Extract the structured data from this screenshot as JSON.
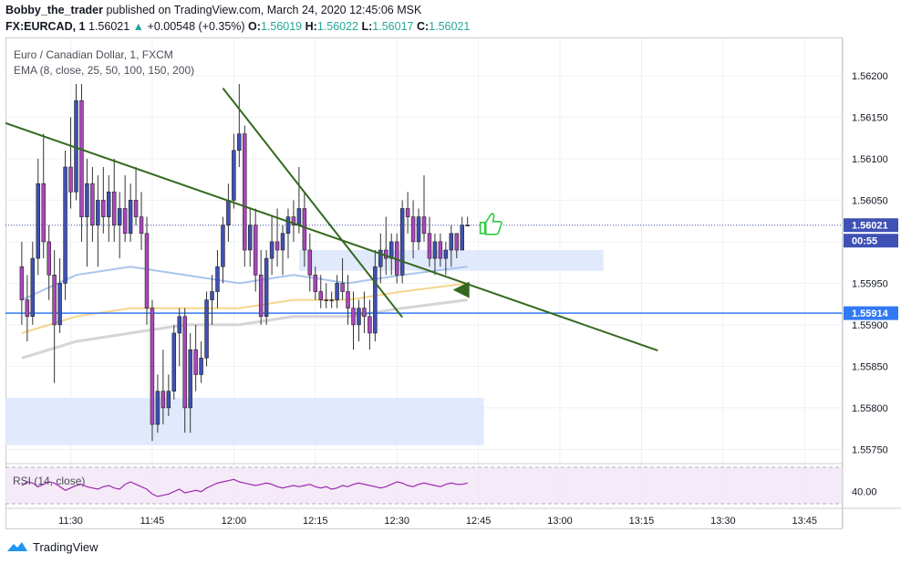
{
  "header": {
    "author": "Bobby_the_trader",
    "published": "published on TradingView.com, March 24, 2020 12:45:06 MSK",
    "symbol": "FX:EURCAD, 1",
    "last": "1.56021",
    "change": "+0.00548 (+0.35%)",
    "o_label": "O:",
    "o": "1.56019",
    "h_label": "H:",
    "h": "1.56022",
    "l_label": "L:",
    "l": "1.56017",
    "c_label": "C:",
    "c": "1.56021"
  },
  "legend": {
    "title": "Euro / Canadian Dollar, 1, FXCM",
    "ema": "EMA (8, close, 25, 50, 100, 150, 200)"
  },
  "rsi": {
    "label": "RSI (14, close)",
    "tick": "40.00"
  },
  "price_tags": {
    "current": "1.56021",
    "countdown": "00:55",
    "level": "1.55914"
  },
  "branding": {
    "name": "TradingView"
  },
  "colors": {
    "up_text": "#26a69a",
    "candle_bull": "#3f51b5",
    "candle_bear": "#ab47bc",
    "trendline": "#33691e",
    "level_line": "#3179f5",
    "zone": "#dbe6fb",
    "ema_fast": "#a9c4ee",
    "ema_mid": "#f5d58a",
    "ema_slow": "#d5d5d5",
    "rsi_line": "#9c27b0",
    "rsi_band": "#f3e5f5"
  },
  "chart_data": {
    "type": "candlestick",
    "symbol": "FX:EURCAD",
    "interval": "1",
    "x_ticks": [
      "11:30",
      "11:45",
      "12:00",
      "12:15",
      "12:30",
      "12:45",
      "13:00",
      "13:15",
      "13:30",
      "13:45"
    ],
    "y_ticks": [
      "1.56200",
      "1.56150",
      "1.56100",
      "1.56050",
      "1.56000",
      "1.55950",
      "1.55900",
      "1.55850",
      "1.55800",
      "1.55750"
    ],
    "ylim": [
      1.55735,
      1.56245
    ],
    "xlim": [
      "11:18",
      "13:52"
    ],
    "candles": [
      {
        "t": "11:21",
        "o": 1.5597,
        "h": 1.56,
        "l": 1.559,
        "c": 1.5593
      },
      {
        "t": "11:22",
        "o": 1.5593,
        "h": 1.5596,
        "l": 1.5588,
        "c": 1.5591
      },
      {
        "t": "11:23",
        "o": 1.5591,
        "h": 1.56,
        "l": 1.559,
        "c": 1.5598
      },
      {
        "t": "11:24",
        "o": 1.5598,
        "h": 1.561,
        "l": 1.5596,
        "c": 1.5607
      },
      {
        "t": "11:25",
        "o": 1.5607,
        "h": 1.5613,
        "l": 1.5598,
        "c": 1.56
      },
      {
        "t": "11:26",
        "o": 1.56,
        "h": 1.5602,
        "l": 1.5593,
        "c": 1.5596
      },
      {
        "t": "11:27",
        "o": 1.5596,
        "h": 1.5599,
        "l": 1.5583,
        "c": 1.559
      },
      {
        "t": "11:28",
        "o": 1.559,
        "h": 1.5598,
        "l": 1.5589,
        "c": 1.5595
      },
      {
        "t": "11:29",
        "o": 1.5595,
        "h": 1.5611,
        "l": 1.5593,
        "c": 1.5609
      },
      {
        "t": "11:30",
        "o": 1.5609,
        "h": 1.5615,
        "l": 1.5604,
        "c": 1.5606
      },
      {
        "t": "11:31",
        "o": 1.5606,
        "h": 1.5619,
        "l": 1.5605,
        "c": 1.5617
      },
      {
        "t": "11:32",
        "o": 1.5617,
        "h": 1.5619,
        "l": 1.56,
        "c": 1.5603
      },
      {
        "t": "11:33",
        "o": 1.5603,
        "h": 1.561,
        "l": 1.5597,
        "c": 1.5607
      },
      {
        "t": "11:34",
        "o": 1.5607,
        "h": 1.5609,
        "l": 1.56,
        "c": 1.5602
      },
      {
        "t": "11:35",
        "o": 1.5602,
        "h": 1.5608,
        "l": 1.5597,
        "c": 1.5605
      },
      {
        "t": "11:36",
        "o": 1.5605,
        "h": 1.5609,
        "l": 1.5601,
        "c": 1.5603
      },
      {
        "t": "11:37",
        "o": 1.5603,
        "h": 1.5608,
        "l": 1.56,
        "c": 1.5606
      },
      {
        "t": "11:38",
        "o": 1.5606,
        "h": 1.561,
        "l": 1.56,
        "c": 1.5602
      },
      {
        "t": "11:39",
        "o": 1.5602,
        "h": 1.5606,
        "l": 1.5598,
        "c": 1.5604
      },
      {
        "t": "11:40",
        "o": 1.5604,
        "h": 1.5608,
        "l": 1.56,
        "c": 1.5601
      },
      {
        "t": "11:41",
        "o": 1.5601,
        "h": 1.5607,
        "l": 1.56,
        "c": 1.5605
      },
      {
        "t": "11:42",
        "o": 1.5605,
        "h": 1.5609,
        "l": 1.5602,
        "c": 1.5603
      },
      {
        "t": "11:43",
        "o": 1.5603,
        "h": 1.5606,
        "l": 1.5599,
        "c": 1.5601
      },
      {
        "t": "11:44",
        "o": 1.5601,
        "h": 1.5603,
        "l": 1.559,
        "c": 1.5592
      },
      {
        "t": "11:45",
        "o": 1.5592,
        "h": 1.5593,
        "l": 1.5576,
        "c": 1.5578
      },
      {
        "t": "11:46",
        "o": 1.5578,
        "h": 1.5584,
        "l": 1.5577,
        "c": 1.5582
      },
      {
        "t": "11:47",
        "o": 1.5582,
        "h": 1.5587,
        "l": 1.5578,
        "c": 1.558
      },
      {
        "t": "11:48",
        "o": 1.558,
        "h": 1.5584,
        "l": 1.5579,
        "c": 1.5582
      },
      {
        "t": "11:49",
        "o": 1.5582,
        "h": 1.559,
        "l": 1.5581,
        "c": 1.5589
      },
      {
        "t": "11:50",
        "o": 1.5589,
        "h": 1.5592,
        "l": 1.5585,
        "c": 1.5591
      },
      {
        "t": "11:51",
        "o": 1.5591,
        "h": 1.5592,
        "l": 1.5577,
        "c": 1.558
      },
      {
        "t": "11:52",
        "o": 1.558,
        "h": 1.5589,
        "l": 1.5577,
        "c": 1.5587
      },
      {
        "t": "11:53",
        "o": 1.5587,
        "h": 1.559,
        "l": 1.5582,
        "c": 1.5584
      },
      {
        "t": "11:54",
        "o": 1.5584,
        "h": 1.5588,
        "l": 1.5583,
        "c": 1.5586
      },
      {
        "t": "11:55",
        "o": 1.5586,
        "h": 1.5594,
        "l": 1.5585,
        "c": 1.5593
      },
      {
        "t": "11:56",
        "o": 1.5593,
        "h": 1.5596,
        "l": 1.559,
        "c": 1.5594
      },
      {
        "t": "11:57",
        "o": 1.5594,
        "h": 1.5599,
        "l": 1.5592,
        "c": 1.5597
      },
      {
        "t": "11:58",
        "o": 1.5597,
        "h": 1.5603,
        "l": 1.5595,
        "c": 1.5602
      },
      {
        "t": "11:59",
        "o": 1.5602,
        "h": 1.5607,
        "l": 1.56,
        "c": 1.5605
      },
      {
        "t": "12:00",
        "o": 1.5605,
        "h": 1.5613,
        "l": 1.5604,
        "c": 1.5611
      },
      {
        "t": "12:01",
        "o": 1.5611,
        "h": 1.5619,
        "l": 1.5609,
        "c": 1.5613
      },
      {
        "t": "12:02",
        "o": 1.5613,
        "h": 1.5614,
        "l": 1.5597,
        "c": 1.5599
      },
      {
        "t": "12:03",
        "o": 1.5599,
        "h": 1.5604,
        "l": 1.5597,
        "c": 1.5602
      },
      {
        "t": "12:04",
        "o": 1.5602,
        "h": 1.5604,
        "l": 1.5594,
        "c": 1.5596
      },
      {
        "t": "12:05",
        "o": 1.5596,
        "h": 1.5599,
        "l": 1.559,
        "c": 1.5591
      },
      {
        "t": "12:06",
        "o": 1.5591,
        "h": 1.5599,
        "l": 1.559,
        "c": 1.5598
      },
      {
        "t": "12:07",
        "o": 1.5598,
        "h": 1.5603,
        "l": 1.5596,
        "c": 1.56
      },
      {
        "t": "12:08",
        "o": 1.56,
        "h": 1.5604,
        "l": 1.5597,
        "c": 1.5599
      },
      {
        "t": "12:09",
        "o": 1.5599,
        "h": 1.5602,
        "l": 1.5596,
        "c": 1.5601
      },
      {
        "t": "12:10",
        "o": 1.5601,
        "h": 1.5604,
        "l": 1.5598,
        "c": 1.5603
      },
      {
        "t": "12:11",
        "o": 1.5603,
        "h": 1.5605,
        "l": 1.56,
        "c": 1.5602
      },
      {
        "t": "12:12",
        "o": 1.5602,
        "h": 1.5609,
        "l": 1.5601,
        "c": 1.5604
      },
      {
        "t": "12:13",
        "o": 1.5604,
        "h": 1.5606,
        "l": 1.5597,
        "c": 1.5599
      },
      {
        "t": "12:14",
        "o": 1.5599,
        "h": 1.5601,
        "l": 1.5594,
        "c": 1.5596
      },
      {
        "t": "12:15",
        "o": 1.5596,
        "h": 1.5597,
        "l": 1.5593,
        "c": 1.5594
      },
      {
        "t": "12:16",
        "o": 1.5594,
        "h": 1.5596,
        "l": 1.5592,
        "c": 1.5593
      },
      {
        "t": "12:17",
        "o": 1.5593,
        "h": 1.5595,
        "l": 1.5592,
        "c": 1.5593
      },
      {
        "t": "12:18",
        "o": 1.5593,
        "h": 1.5594,
        "l": 1.5592,
        "c": 1.5593
      },
      {
        "t": "12:19",
        "o": 1.5593,
        "h": 1.5596,
        "l": 1.5592,
        "c": 1.5595
      },
      {
        "t": "12:20",
        "o": 1.5595,
        "h": 1.5598,
        "l": 1.5593,
        "c": 1.5594
      },
      {
        "t": "12:21",
        "o": 1.5594,
        "h": 1.5596,
        "l": 1.559,
        "c": 1.5592
      },
      {
        "t": "12:22",
        "o": 1.5592,
        "h": 1.5594,
        "l": 1.5587,
        "c": 1.559
      },
      {
        "t": "12:23",
        "o": 1.559,
        "h": 1.5593,
        "l": 1.5588,
        "c": 1.5592
      },
      {
        "t": "12:24",
        "o": 1.5592,
        "h": 1.5594,
        "l": 1.5589,
        "c": 1.5591
      },
      {
        "t": "12:25",
        "o": 1.5591,
        "h": 1.5593,
        "l": 1.5587,
        "c": 1.5589
      },
      {
        "t": "12:26",
        "o": 1.5589,
        "h": 1.5599,
        "l": 1.5588,
        "c": 1.5597
      },
      {
        "t": "12:27",
        "o": 1.5597,
        "h": 1.5601,
        "l": 1.5595,
        "c": 1.5599
      },
      {
        "t": "12:28",
        "o": 1.5599,
        "h": 1.5603,
        "l": 1.5596,
        "c": 1.5598
      },
      {
        "t": "12:29",
        "o": 1.5598,
        "h": 1.5601,
        "l": 1.5596,
        "c": 1.56
      },
      {
        "t": "12:30",
        "o": 1.56,
        "h": 1.5601,
        "l": 1.5595,
        "c": 1.5596
      },
      {
        "t": "12:31",
        "o": 1.5596,
        "h": 1.5605,
        "l": 1.5595,
        "c": 1.5604
      },
      {
        "t": "12:32",
        "o": 1.5604,
        "h": 1.5606,
        "l": 1.5601,
        "c": 1.5603
      },
      {
        "t": "12:33",
        "o": 1.5603,
        "h": 1.5605,
        "l": 1.5598,
        "c": 1.56
      },
      {
        "t": "12:34",
        "o": 1.56,
        "h": 1.5604,
        "l": 1.5599,
        "c": 1.5603
      },
      {
        "t": "12:35",
        "o": 1.5603,
        "h": 1.5608,
        "l": 1.56,
        "c": 1.5601
      },
      {
        "t": "12:36",
        "o": 1.5601,
        "h": 1.5603,
        "l": 1.5597,
        "c": 1.5598
      },
      {
        "t": "12:37",
        "o": 1.5598,
        "h": 1.5601,
        "l": 1.5596,
        "c": 1.56
      },
      {
        "t": "12:38",
        "o": 1.56,
        "h": 1.5601,
        "l": 1.5597,
        "c": 1.5598
      },
      {
        "t": "12:39",
        "o": 1.5598,
        "h": 1.56,
        "l": 1.5596,
        "c": 1.5599
      },
      {
        "t": "12:40",
        "o": 1.5599,
        "h": 1.5602,
        "l": 1.5597,
        "c": 1.5601
      },
      {
        "t": "12:41",
        "o": 1.5601,
        "h": 1.5601,
        "l": 1.5598,
        "c": 1.5599
      },
      {
        "t": "12:42",
        "o": 1.5599,
        "h": 1.5603,
        "l": 1.5599,
        "c": 1.5602
      },
      {
        "t": "12:43",
        "o": 1.5602,
        "h": 1.5603,
        "l": 1.5602,
        "c": 1.5602
      }
    ],
    "ema": [
      {
        "name": "EMA fast",
        "points": [
          [
            0,
            1.5593
          ],
          [
            10,
            1.5596
          ],
          [
            20,
            1.5597
          ],
          [
            30,
            1.5596
          ],
          [
            40,
            1.5595
          ],
          [
            50,
            1.5596
          ],
          [
            60,
            1.5595
          ],
          [
            70,
            1.5596
          ],
          [
            82,
            1.5597
          ]
        ]
      },
      {
        "name": "EMA mid",
        "points": [
          [
            0,
            1.5589
          ],
          [
            10,
            1.5591
          ],
          [
            20,
            1.5592
          ],
          [
            30,
            1.5592
          ],
          [
            40,
            1.5592
          ],
          [
            50,
            1.5593
          ],
          [
            60,
            1.5593
          ],
          [
            70,
            1.5594
          ],
          [
            82,
            1.5595
          ]
        ]
      },
      {
        "name": "EMA slow",
        "points": [
          [
            0,
            1.5586
          ],
          [
            10,
            1.5588
          ],
          [
            20,
            1.5589
          ],
          [
            30,
            1.559
          ],
          [
            40,
            1.559
          ],
          [
            50,
            1.5591
          ],
          [
            60,
            1.5591
          ],
          [
            70,
            1.5592
          ],
          [
            82,
            1.5593
          ]
        ]
      }
    ],
    "levels": [
      {
        "price": 1.55914
      }
    ],
    "zones": [
      {
        "t1": "12:12",
        "t2": "13:08",
        "p1": 1.5599,
        "p2": 1.55965
      },
      {
        "t1": "11:18",
        "t2": "12:46",
        "p1": 1.55812,
        "p2": 1.55755
      }
    ],
    "trendlines": [
      {
        "t1": "11:18",
        "p1": 1.56143,
        "t2": "13:18",
        "p2": 1.55869
      },
      {
        "t1": "11:58",
        "p1": 1.56185,
        "t2": "12:31",
        "p2": 1.55909
      }
    ],
    "rsi": {
      "range": [
        30,
        60
      ],
      "values": [
        45,
        48,
        47,
        44,
        46,
        48,
        47,
        44,
        41,
        43,
        45,
        46,
        44,
        43,
        42,
        44,
        45,
        43,
        42,
        46,
        48,
        46,
        44,
        42,
        38,
        36,
        37,
        38,
        40,
        42,
        39,
        40,
        41,
        40,
        43,
        45,
        47,
        48,
        49,
        50,
        48,
        47,
        46,
        45,
        46,
        47,
        46,
        44,
        43,
        44,
        45,
        44,
        45,
        46,
        44,
        43,
        44,
        42,
        43,
        45,
        44,
        46,
        47,
        46,
        45,
        44,
        43,
        44,
        46,
        48,
        47,
        45,
        44,
        46,
        47,
        46,
        45,
        44,
        46,
        47,
        46,
        46,
        47
      ]
    }
  }
}
